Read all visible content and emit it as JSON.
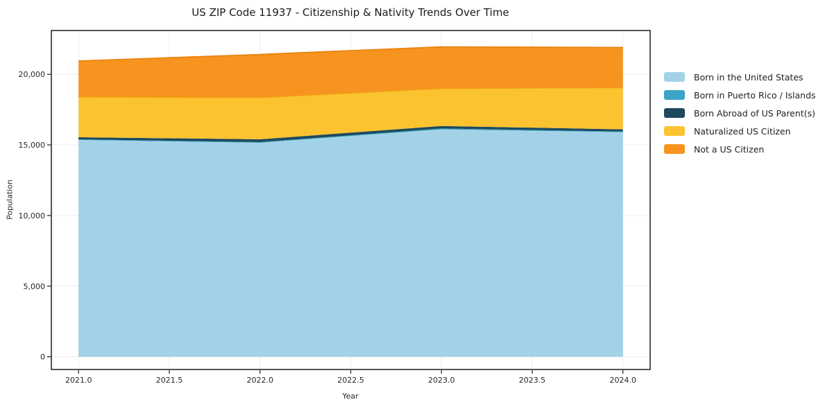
{
  "page": {
    "background": "#ffffff"
  },
  "chart_data": {
    "type": "area",
    "stacked": true,
    "title": "US ZIP Code 11937 - Citizenship & Nativity Trends Over Time",
    "xlabel": "Year",
    "ylabel": "Population",
    "x": [
      2021,
      2022,
      2023,
      2024
    ],
    "series": [
      {
        "name": "Born in the United States",
        "color": "#a3d2e8",
        "values": [
          15350,
          15150,
          16100,
          15900
        ]
      },
      {
        "name": "Born in Puerto Rico / Islands",
        "color": "#3aa5c6",
        "values": [
          40,
          50,
          60,
          50
        ]
      },
      {
        "name": "Born Abroad of US Parent(s)",
        "color": "#1e4a5e",
        "values": [
          150,
          200,
          180,
          150
        ]
      },
      {
        "name": "Naturalized US Citizen",
        "color": "#fcc330",
        "edge": "#edb113",
        "values": [
          2850,
          2950,
          2650,
          2950
        ]
      },
      {
        "name": "Not a US Citizen",
        "color": "#f7941f",
        "edge": "#ea830d",
        "values": [
          2550,
          3050,
          2950,
          2850
        ]
      }
    ],
    "totals": [
      20940,
      21400,
      21940,
      21900
    ],
    "xlim": [
      2020.85,
      2024.15
    ],
    "ylim": [
      -900,
      23100
    ],
    "x_ticks": [
      2021,
      2021.5,
      2022,
      2022.5,
      2023,
      2023.5,
      2024
    ],
    "x_tick_labels": [
      "2021.0",
      "2021.5",
      "2022.0",
      "2022.5",
      "2023.0",
      "2023.5",
      "2024.0"
    ],
    "y_ticks": [
      0,
      5000,
      10000,
      15000,
      20000
    ],
    "y_tick_labels": [
      "0",
      "5,000",
      "10,000",
      "15,000",
      "20,000"
    ],
    "grid": true,
    "grid_color": "#ececec",
    "frame_color": "#1a1a1a",
    "legend_position": "right"
  }
}
